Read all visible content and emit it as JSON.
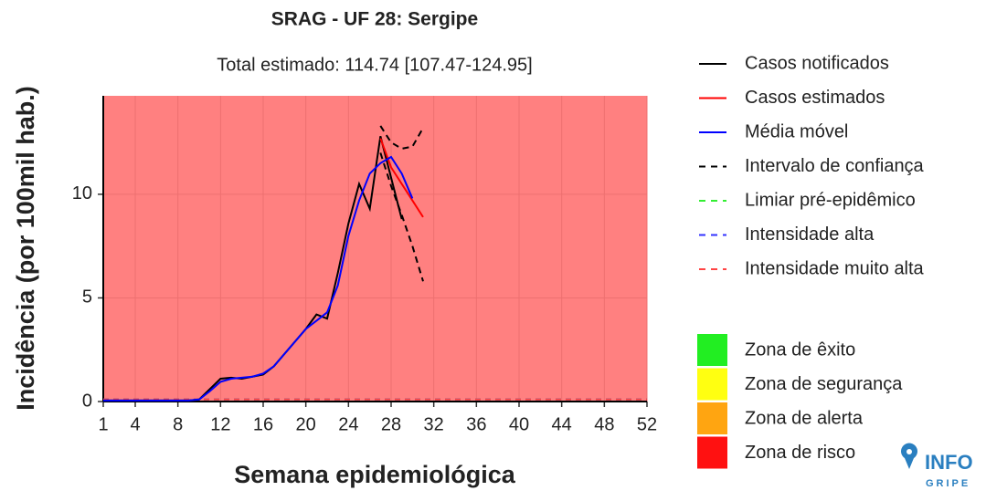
{
  "chart_data": {
    "type": "line",
    "title": "SRAG - UF 28: Sergipe",
    "subtitle": "Total estimado: 114.74 [107.47-124.95]",
    "xlabel": "Semana epidemiológica",
    "ylabel": "Incidência (por 100mil hab.)",
    "x": [
      1,
      2,
      3,
      4,
      5,
      6,
      7,
      8,
      9,
      10,
      11,
      12,
      13,
      14,
      15,
      16,
      17,
      18,
      19,
      20,
      21,
      22,
      23,
      24,
      25,
      26,
      27,
      28,
      29,
      30,
      31
    ],
    "xlim": [
      1,
      52
    ],
    "xticks": [
      1,
      4,
      8,
      12,
      16,
      20,
      24,
      28,
      32,
      36,
      40,
      44,
      48,
      52
    ],
    "ylim": [
      0,
      14.75
    ],
    "yticks": [
      0,
      5,
      10
    ],
    "grid": true,
    "background": "#ff8080",
    "series": [
      {
        "name": "Casos notificados",
        "color": "#000000",
        "dash": false,
        "values": [
          0.05,
          0.05,
          0.05,
          0.05,
          0.05,
          0.05,
          0.05,
          0.05,
          0.05,
          0.1,
          0.6,
          1.1,
          1.15,
          1.1,
          1.2,
          1.3,
          1.7,
          2.3,
          2.9,
          3.5,
          4.2,
          4.0,
          6.2,
          8.6,
          10.5,
          9.3,
          12.8,
          10.8,
          8.8,
          null,
          null
        ]
      },
      {
        "name": "Casos estimados",
        "color": "#ff0000",
        "dash": false,
        "values": [
          null,
          null,
          null,
          null,
          null,
          null,
          null,
          null,
          null,
          null,
          null,
          null,
          null,
          null,
          null,
          null,
          null,
          null,
          null,
          null,
          null,
          null,
          null,
          null,
          null,
          null,
          12.7,
          11.3,
          10.5,
          9.7,
          8.9
        ]
      },
      {
        "name": "Média móvel",
        "color": "#0000ff",
        "dash": false,
        "values": [
          0.05,
          0.05,
          0.05,
          0.05,
          0.05,
          0.05,
          0.05,
          0.05,
          0.05,
          0.1,
          0.5,
          0.95,
          1.1,
          1.15,
          1.2,
          1.35,
          1.7,
          2.3,
          2.9,
          3.5,
          3.9,
          4.3,
          5.6,
          8.0,
          9.7,
          11.0,
          11.5,
          11.8,
          11.0,
          9.8,
          null
        ]
      },
      {
        "name": "Intervalo de confiança",
        "color": "#000000",
        "dash": true,
        "values": [
          null,
          null,
          null,
          null,
          null,
          null,
          null,
          null,
          null,
          null,
          null,
          null,
          null,
          null,
          null,
          null,
          null,
          null,
          null,
          null,
          null,
          null,
          null,
          null,
          null,
          null,
          13.3,
          12.5,
          12.2,
          12.3,
          13.2
        ]
      },
      {
        "name": null,
        "color": "#000000",
        "dash": true,
        "values": [
          null,
          null,
          null,
          null,
          null,
          null,
          null,
          null,
          null,
          null,
          null,
          null,
          null,
          null,
          null,
          null,
          null,
          null,
          null,
          null,
          null,
          null,
          null,
          null,
          null,
          null,
          12.0,
          10.4,
          9.0,
          7.5,
          5.8
        ]
      }
    ],
    "hlines": [
      {
        "name": "Limiar pré-epidêmico",
        "color": "#33ee33",
        "value": 0.1
      },
      {
        "name": "Intensidade alta",
        "color": "#3333ff",
        "value": 0.1
      },
      {
        "name": "Intensidade muito alta",
        "color": "#ff4444",
        "value": 0.1
      }
    ],
    "zones": [
      {
        "name": "Zona de êxito",
        "color": "#22ee22"
      },
      {
        "name": "Zona de segurança",
        "color": "#ffff11"
      },
      {
        "name": "Zona de alerta",
        "color": "#ffa511"
      },
      {
        "name": "Zona de risco",
        "color": "#ff1111"
      }
    ]
  },
  "logo": {
    "top": "INFO",
    "bottom": "GRIPE"
  }
}
